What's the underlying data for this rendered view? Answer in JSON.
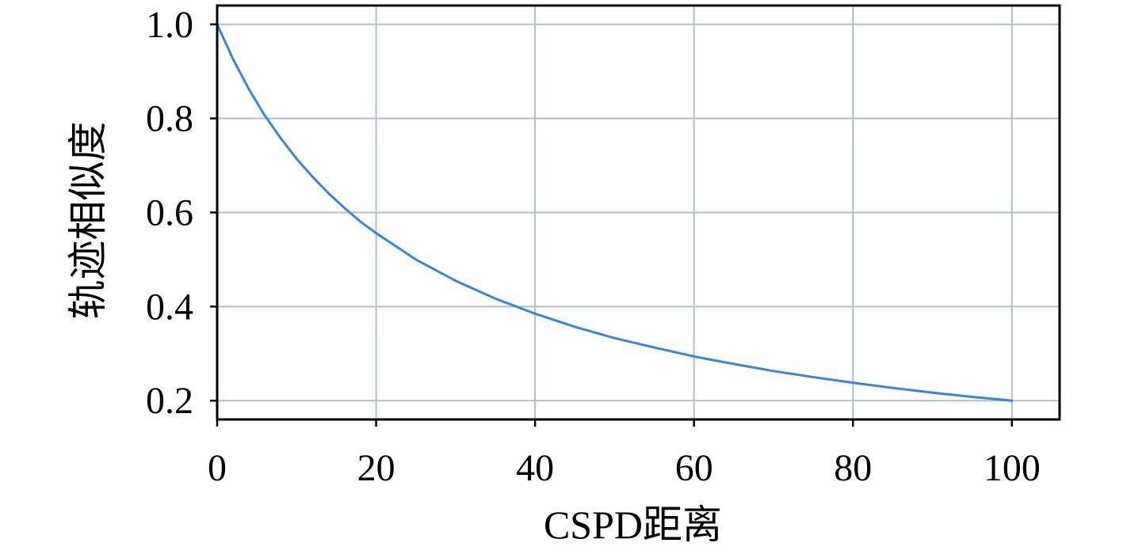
{
  "chart_data": {
    "type": "line",
    "title": "",
    "xlabel": "CSPD距离",
    "ylabel": "轨迹相似度",
    "xlim": [
      0,
      106
    ],
    "ylim": [
      0.16,
      1.04
    ],
    "x_ticks": [
      0,
      20,
      40,
      60,
      80,
      100
    ],
    "y_ticks": [
      0.2,
      0.4,
      0.6,
      0.8,
      1.0
    ],
    "x_tick_labels": [
      "0",
      "20",
      "40",
      "60",
      "80",
      "100"
    ],
    "y_tick_labels": [
      "0.2",
      "0.4",
      "0.6",
      "0.8",
      "1.0"
    ],
    "grid": true,
    "legend": "none",
    "colors": {
      "line": "#3a86d0",
      "grid": "#b4bfc4",
      "frame": "#000000"
    },
    "series": [
      {
        "x": [
          0,
          2,
          4,
          6,
          8,
          10,
          12,
          14,
          16,
          18,
          20,
          25,
          30,
          35,
          40,
          45,
          50,
          55,
          60,
          65,
          70,
          75,
          80,
          85,
          90,
          95,
          100
        ],
        "values": [
          1.0,
          0.926,
          0.862,
          0.806,
          0.758,
          0.714,
          0.676,
          0.641,
          0.61,
          0.581,
          0.556,
          0.5,
          0.455,
          0.417,
          0.385,
          0.357,
          0.333,
          0.313,
          0.294,
          0.278,
          0.263,
          0.25,
          0.238,
          0.227,
          0.217,
          0.208,
          0.2
        ]
      }
    ]
  }
}
